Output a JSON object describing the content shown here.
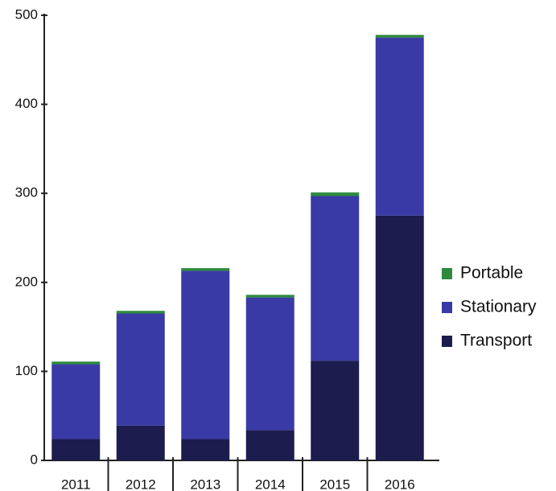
{
  "chart_data": {
    "type": "stacked_bar",
    "categories": [
      "2011",
      "2012",
      "2013",
      "2014",
      "2015",
      "2016"
    ],
    "series": [
      {
        "name": "Transport",
        "color": "#1c1c4e",
        "values": [
          24,
          39,
          24,
          34,
          112,
          275
        ]
      },
      {
        "name": "Stationary",
        "color": "#3a3aa6",
        "values": [
          84,
          126,
          189,
          149,
          185,
          200
        ]
      },
      {
        "name": "Portable",
        "color": "#2e8b3e",
        "values": [
          3,
          3,
          3,
          3,
          4,
          3
        ]
      }
    ],
    "ylim": [
      0,
      500
    ],
    "yticks": [
      0,
      100,
      200,
      300,
      400,
      500
    ],
    "grid": false
  }
}
